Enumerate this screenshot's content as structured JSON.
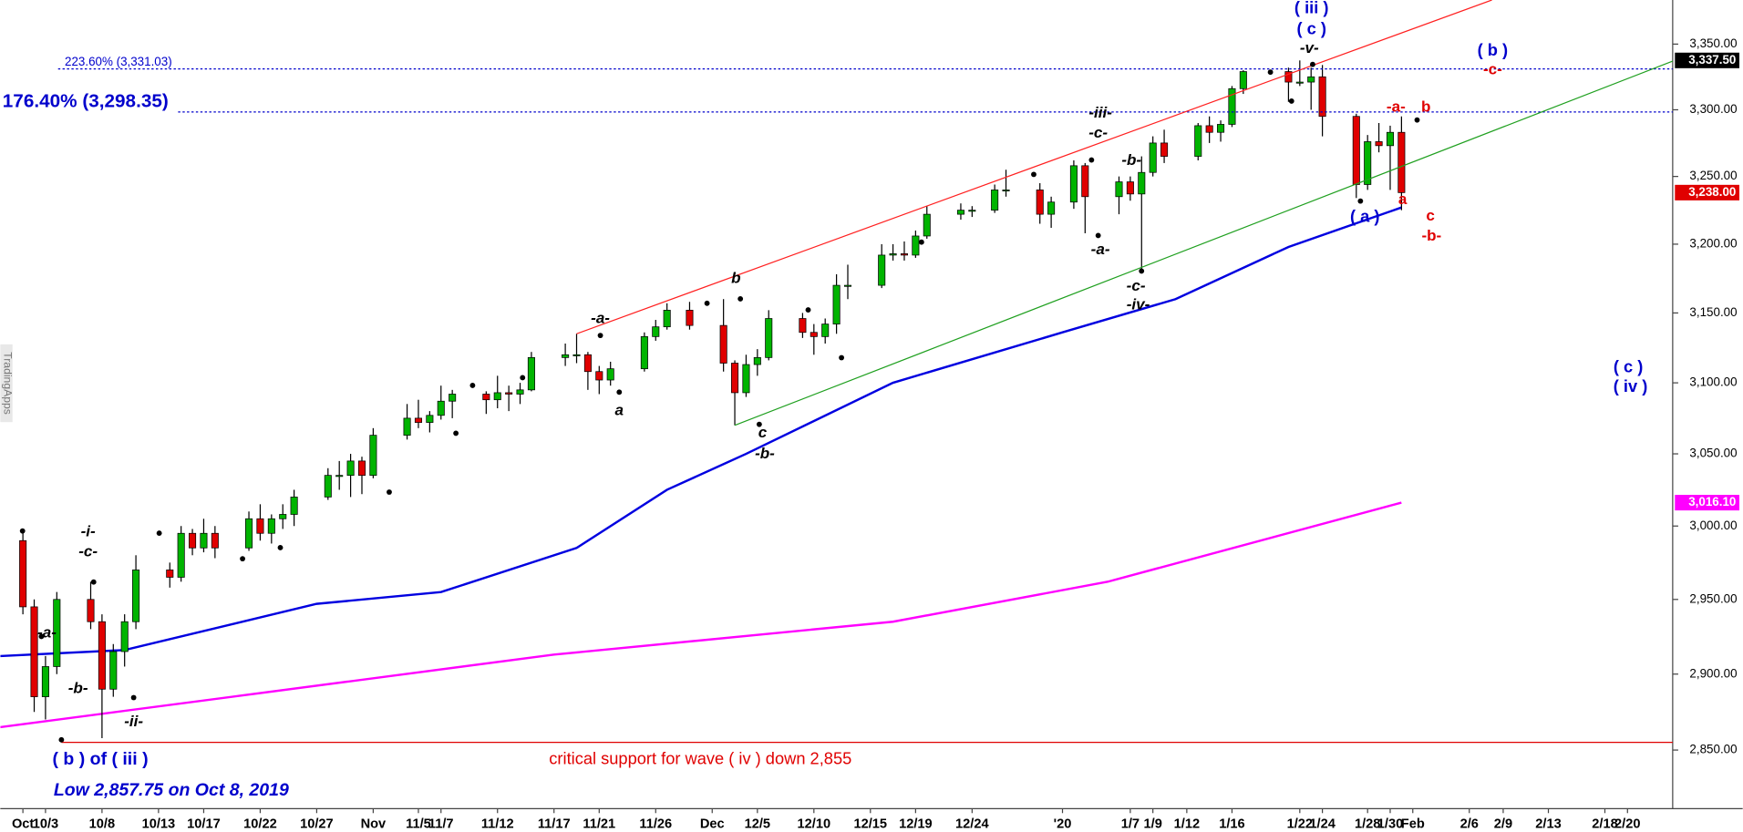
{
  "chart_data": {
    "type": "candlestick",
    "log": true,
    "grid": false,
    "xlim": [
      "9/29",
      "2/24"
    ],
    "ylim": [
      2812,
      3384
    ],
    "yticks": [
      {
        "value": 2850,
        "label": "2,850.00"
      },
      {
        "value": 2900,
        "label": "2,900.00"
      },
      {
        "value": 2950,
        "label": "2,950.00"
      },
      {
        "value": 3000,
        "label": "3,000.00"
      },
      {
        "value": 3050,
        "label": "3,050.00"
      },
      {
        "value": 3100,
        "label": "3,100.00"
      },
      {
        "value": 3150,
        "label": "3,150.00"
      },
      {
        "value": 3200,
        "label": "3,200.00"
      },
      {
        "value": 3250,
        "label": "3,250.00"
      },
      {
        "value": 3300,
        "label": "3,300.00"
      },
      {
        "value": 3350,
        "label": "3,350.00"
      }
    ],
    "xticks": [
      {
        "value": "10/1",
        "label": "Oct"
      },
      "10/3",
      "10/8",
      "10/13",
      "10/17",
      "10/22",
      "10/27",
      {
        "value": "11/1",
        "label": "Nov"
      },
      "11/5",
      "11/7",
      "11/12",
      "11/17",
      "11/21",
      "11/26",
      {
        "value": "12/1",
        "label": "Dec"
      },
      "12/5",
      "12/10",
      "12/15",
      "12/19",
      "12/24",
      {
        "value": "1/1",
        "label": "'20"
      },
      "1/7",
      "1/9",
      "1/12",
      "1/16",
      "1/22",
      "1/24",
      "1/28",
      "1/30",
      {
        "value": "2/1",
        "label": "Feb"
      },
      "2/6",
      "2/9",
      "2/13",
      "2/18",
      "2/20"
    ],
    "up_color": "#00b400",
    "down_color": "#e00000",
    "x": [
      "10/1",
      "10/2",
      "10/3",
      "10/4",
      "10/7",
      "10/8",
      "10/9",
      "10/10",
      "10/11",
      "10/14",
      "10/15",
      "10/16",
      "10/17",
      "10/18",
      "10/21",
      "10/22",
      "10/23",
      "10/24",
      "10/25",
      "10/28",
      "10/29",
      "10/30",
      "10/31",
      "11/1",
      "11/4",
      "11/5",
      "11/6",
      "11/7",
      "11/8",
      "11/11",
      "11/12",
      "11/13",
      "11/14",
      "11/15",
      "11/18",
      "11/19",
      "11/20",
      "11/21",
      "11/22",
      "11/25",
      "11/26",
      "11/27",
      "11/29",
      "12/2",
      "12/3",
      "12/4",
      "12/5",
      "12/6",
      "12/9",
      "12/10",
      "12/11",
      "12/12",
      "12/13",
      "12/16",
      "12/17",
      "12/18",
      "12/19",
      "12/20",
      "12/23",
      "12/24",
      "12/26",
      "12/27",
      "12/30",
      "12/31",
      "1/2",
      "1/3",
      "1/6",
      "1/7",
      "1/8",
      "1/9",
      "1/10",
      "1/13",
      "1/14",
      "1/15",
      "1/16",
      "1/17",
      "1/21",
      "1/22",
      "1/23",
      "1/24",
      "1/27",
      "1/28",
      "1/29",
      "1/30",
      "1/31"
    ],
    "open": [
      2990,
      2945,
      2885,
      2905,
      2950,
      2935,
      2890,
      2915,
      2935,
      2970,
      2965,
      2995,
      2985,
      2995,
      2985,
      3005,
      2995,
      3005,
      3008,
      3020,
      3035,
      3035,
      3045,
      3035,
      3063,
      3075,
      3072,
      3077,
      3087,
      3092,
      3088,
      3093,
      3092,
      3095,
      3118,
      3120,
      3120,
      3108,
      3102,
      3110,
      3133,
      3140,
      3152,
      3141,
      3114,
      3093,
      3113,
      3118,
      3146,
      3136,
      3133,
      3142,
      3170,
      3170,
      3192,
      3193,
      3192,
      3206,
      3222,
      3225,
      3225,
      3240,
      3240,
      3222,
      3231,
      3258,
      3235,
      3246,
      3237,
      3253,
      3275,
      3265,
      3288,
      3283,
      3289,
      3316,
      3329,
      3321,
      3321,
      3325,
      3295,
      3244,
      3276,
      3273,
      3283
    ],
    "high": [
      2998,
      2950,
      2912,
      2955,
      2962,
      2940,
      2920,
      2940,
      2980,
      2975,
      3000,
      2998,
      3005,
      3000,
      3010,
      3015,
      3008,
      3015,
      3025,
      3040,
      3045,
      3050,
      3048,
      3068,
      3085,
      3088,
      3080,
      3098,
      3095,
      3094,
      3105,
      3098,
      3100,
      3122,
      3128,
      3135,
      3122,
      3112,
      3115,
      3136,
      3145,
      3157,
      3158,
      3160,
      3116,
      3120,
      3124,
      3152,
      3150,
      3142,
      3146,
      3178,
      3185,
      3200,
      3200,
      3202,
      3210,
      3228,
      3230,
      3228,
      3244,
      3255,
      3245,
      3235,
      3262,
      3260,
      3250,
      3250,
      3265,
      3280,
      3285,
      3290,
      3295,
      3292,
      3318,
      3330,
      3332,
      3337.5,
      3332,
      3334,
      3297,
      3281,
      3290,
      3288,
      3295
    ],
    "low": [
      2940,
      2875,
      2870,
      2900,
      2930,
      2857.75,
      2885,
      2905,
      2930,
      2958,
      2962,
      2980,
      2982,
      2978,
      2983,
      2990,
      2988,
      2998,
      3000,
      3018,
      3025,
      3020,
      3022,
      3033,
      3060,
      3068,
      3065,
      3074,
      3075,
      3078,
      3082,
      3080,
      3085,
      3094,
      3112,
      3114,
      3095,
      3092,
      3098,
      3108,
      3130,
      3138,
      3138,
      3108,
      3070,
      3090,
      3105,
      3116,
      3132,
      3120,
      3128,
      3135,
      3160,
      3168,
      3188,
      3188,
      3190,
      3204,
      3218,
      3220,
      3223,
      3235,
      3215,
      3212,
      3226,
      3208,
      3222,
      3232,
      3181,
      3250,
      3260,
      3262,
      3275,
      3276,
      3287,
      3312,
      3306,
      3318,
      3300,
      3280,
      3234,
      3240,
      3268,
      3240,
      3225
    ],
    "close": [
      2945,
      2885,
      2905,
      2950,
      2935,
      2890,
      2915,
      2935,
      2970,
      2965,
      2995,
      2985,
      2995,
      2985,
      3005,
      2995,
      3005,
      3008,
      3020,
      3035,
      3035,
      3045,
      3035,
      3063,
      3075,
      3072,
      3077,
      3087,
      3092,
      3088,
      3093,
      3092,
      3095,
      3118,
      3120,
      3120,
      3108,
      3102,
      3110,
      3133,
      3140,
      3152,
      3141,
      3114,
      3093,
      3113,
      3118,
      3146,
      3136,
      3133,
      3142,
      3170,
      3170,
      3192,
      3193,
      3192,
      3206,
      3222,
      3225,
      3225,
      3240,
      3240,
      3222,
      3231,
      3258,
      3235,
      3246,
      3237,
      3253,
      3275,
      3265,
      3288,
      3283,
      3289,
      3316,
      3329,
      3321,
      3321,
      3325,
      3295,
      3244,
      3276,
      3273,
      3283,
      3238
    ],
    "lines": [
      {
        "color": "#0000e0",
        "x": [
          "9/29",
          "10/10",
          "10/27",
          "11/7",
          "11/19",
          "11/27",
          "12/4",
          "12/17",
          "1/1",
          "1/11",
          "1/21",
          "1/31"
        ],
        "values": [
          2912,
          2916,
          2947,
          2955,
          2985,
          3025,
          3050,
          3100,
          3136,
          3160,
          3198,
          3227
        ]
      },
      {
        "color": "#ff00ff",
        "x": [
          "9/29",
          "11/17",
          "12/17",
          "1/5",
          "1/31"
        ],
        "values": [
          2865,
          2913,
          2935,
          2962,
          3016.1
        ]
      }
    ],
    "trendlines": [
      {
        "color": "#ff2020",
        "x": [
          "11/19",
          "2/8"
        ],
        "values": [
          3135,
          3384
        ]
      },
      {
        "color": "#20a020",
        "x": [
          "12/3",
          "2/24"
        ],
        "values": [
          3070,
          3337
        ]
      }
    ],
    "levels": [
      {
        "value": 3331.03,
        "label": "223.60% (3,331.03)",
        "color": "#0000cc",
        "style": "dotted"
      },
      {
        "value": 3298.35,
        "label": "176.40% (3,298.35)",
        "color": "#0000cc",
        "style": "dotted"
      },
      {
        "value": 2855,
        "label": "critical support for wave ( iv ) down 2,855",
        "color": "#e00000",
        "style": "solid"
      }
    ],
    "price_labels": [
      {
        "value": 3337.5,
        "label": "3,337.50",
        "color": "#000000"
      },
      {
        "value": 3238,
        "label": "3,238.00",
        "color": "#e00000"
      },
      {
        "value": 3016.1,
        "label": "3,016.10",
        "color": "#ff00ff"
      }
    ],
    "annotations": [
      {
        "text": "( iii )",
        "color": "#0000cc"
      },
      {
        "text": "( c )",
        "color": "#0000cc"
      },
      {
        "text": "-v-",
        "color": "#000000"
      },
      {
        "text": "( b )",
        "color": "#0000cc"
      },
      {
        "text": "-c-",
        "color": "#e00000"
      },
      {
        "text": "-iii-",
        "color": "#000000"
      },
      {
        "text": "-c-",
        "color": "#000000"
      },
      {
        "text": "-b-",
        "color": "#000000"
      },
      {
        "text": "-a-",
        "color": "#000000"
      },
      {
        "text": "-c-",
        "color": "#000000"
      },
      {
        "text": "-iv-",
        "color": "#000000"
      },
      {
        "text": "-a-",
        "color": "#e00000"
      },
      {
        "text": "b",
        "color": "#e00000"
      },
      {
        "text": "a",
        "color": "#e00000"
      },
      {
        "text": "c",
        "color": "#e00000"
      },
      {
        "text": "-b-",
        "color": "#e00000"
      },
      {
        "text": "( a )",
        "color": "#0000cc"
      },
      {
        "text": "b",
        "color": "#000000"
      },
      {
        "text": "-a-",
        "color": "#000000"
      },
      {
        "text": "a",
        "color": "#000000"
      },
      {
        "text": "c",
        "color": "#000000"
      },
      {
        "text": "-b-",
        "color": "#000000"
      },
      {
        "text": "-i-",
        "color": "#000000"
      },
      {
        "text": "-c-",
        "color": "#000000"
      },
      {
        "text": "-a-",
        "color": "#000000"
      },
      {
        "text": "-b-",
        "color": "#000000"
      },
      {
        "text": "-ii-",
        "color": "#000000"
      },
      {
        "text": "( b ) of ( iii )",
        "color": "#0000cc"
      },
      {
        "text": "Low 2,857.75 on Oct 8, 2019",
        "color": "#0000cc"
      },
      {
        "text": "( c )",
        "color": "#0000cc"
      },
      {
        "text": "( iv )",
        "color": "#0000cc"
      }
    ],
    "watermark": "TradingApps"
  }
}
